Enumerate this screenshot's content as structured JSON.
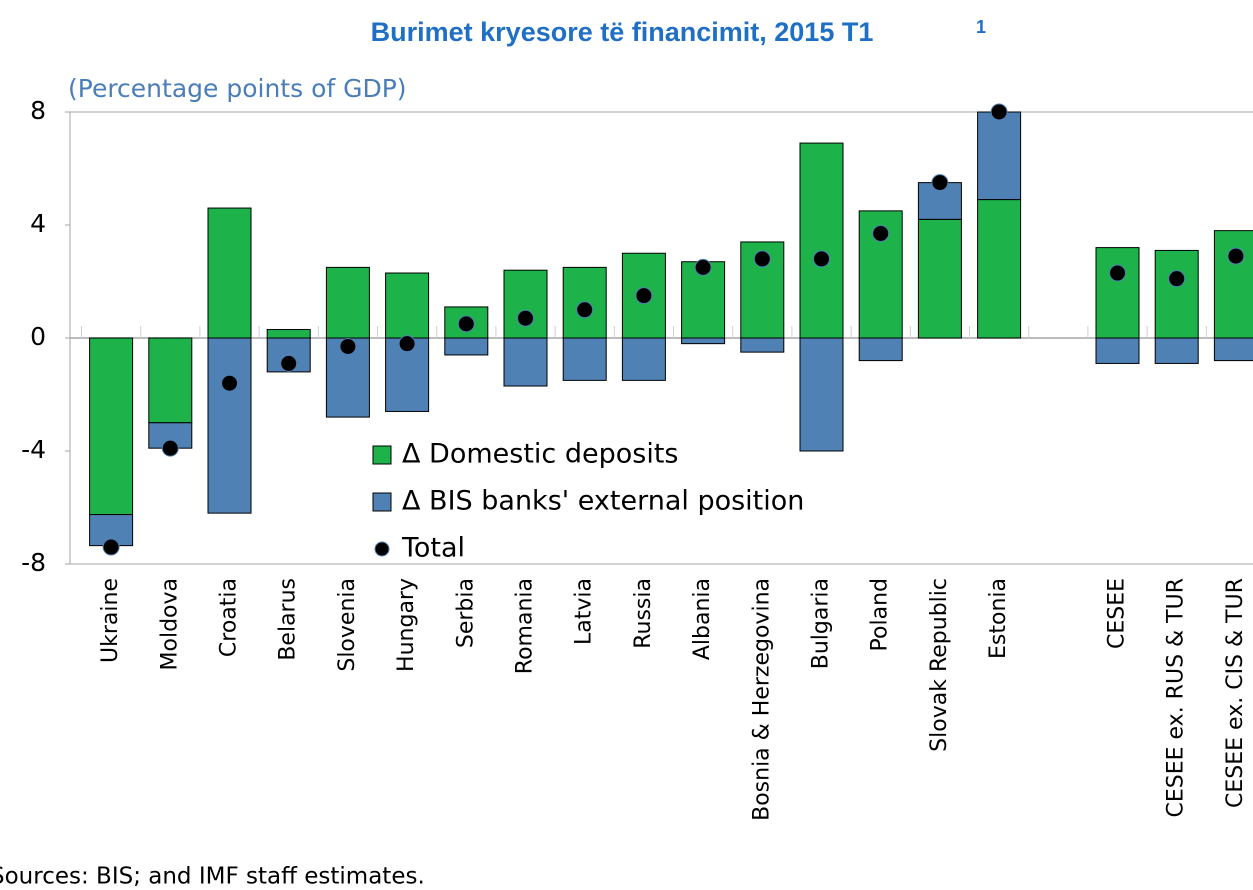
{
  "chart_data": {
    "type": "stacked_bar",
    "title": "Burimet kryesore të financimit, 2015 T1",
    "title_note": "1",
    "subtitle": "(Percentage points of GDP)",
    "source": "Sources: BIS; and IMF staff estimates.",
    "categories": [
      "Ukraine",
      "Moldova",
      "Croatia",
      "Belarus",
      "Slovenia",
      "Hungary",
      "Serbia",
      "Romania",
      "Latvia",
      "Russia",
      "Albania",
      "Bosnia & Herzegovina",
      "Bulgaria",
      "Poland",
      "Slovak Republic",
      "Estonia",
      null,
      "CESEE",
      "CESEE ex. RUS & TUR",
      "CESEE ex. CIS & TUR"
    ],
    "series": [
      {
        "name": "Δ Domestic deposits",
        "color": "#1db34a",
        "mark": "bar",
        "values": [
          -6.25,
          -3.0,
          4.6,
          0.3,
          2.5,
          2.3,
          1.1,
          2.4,
          2.5,
          3.0,
          2.7,
          3.4,
          6.9,
          4.5,
          4.2,
          4.9,
          null,
          3.2,
          3.1,
          3.8
        ]
      },
      {
        "name": "Δ BIS banks' external position",
        "color": "#4f81b5",
        "mark": "bar",
        "values": [
          -1.1,
          -0.9,
          -6.2,
          -1.2,
          -2.8,
          -2.6,
          -0.6,
          -1.7,
          -1.5,
          -1.5,
          -0.2,
          -0.5,
          -4.0,
          -0.8,
          1.3,
          3.1,
          null,
          -0.9,
          -0.9,
          -0.8
        ]
      },
      {
        "name": "Total",
        "color": "#000000",
        "mark": "dot",
        "values": [
          -7.4,
          -3.9,
          -1.6,
          -0.9,
          -0.3,
          -0.2,
          0.5,
          0.7,
          1.0,
          1.5,
          2.5,
          2.8,
          2.8,
          3.7,
          5.5,
          8.0,
          null,
          2.3,
          2.1,
          2.9
        ]
      }
    ],
    "ylim": [
      -8,
      8
    ],
    "yticks": [
      -8,
      -4,
      0,
      4,
      8
    ]
  }
}
